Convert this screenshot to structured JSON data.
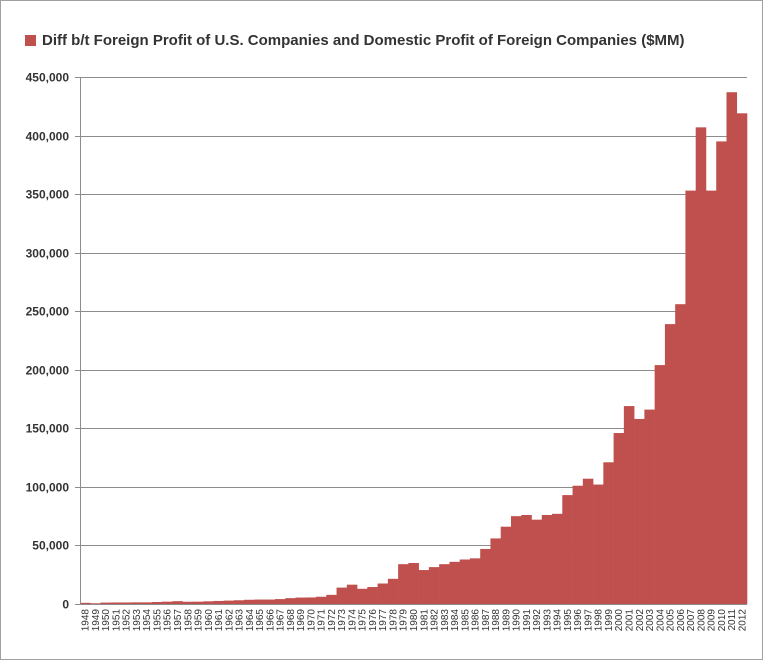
{
  "chart_data": {
    "type": "bar",
    "legend": {
      "label": "Diff b/t Foreign Profit of U.S. Companies and Domestic Profit of Foreign Companies ($MM)",
      "position": "top-left"
    },
    "grid": true,
    "ylim": [
      0,
      450000
    ],
    "yticks": [
      "0",
      "50,000",
      "100,000",
      "150,000",
      "200,000",
      "250,000",
      "300,000",
      "350,000",
      "400,000",
      "450,000"
    ],
    "ytick_values": [
      0,
      50000,
      100000,
      150000,
      200000,
      250000,
      300000,
      350000,
      400000,
      450000
    ],
    "categories": [
      "1948",
      "1949",
      "1950",
      "1951",
      "1952",
      "1953",
      "1954",
      "1955",
      "1956",
      "1957",
      "1958",
      "1959",
      "1960",
      "1961",
      "1962",
      "1963",
      "1964",
      "1965",
      "1966",
      "1967",
      "1968",
      "1969",
      "1970",
      "1971",
      "1972",
      "1973",
      "1974",
      "1975",
      "1976",
      "1977",
      "1978",
      "1979",
      "1980",
      "1981",
      "1982",
      "1983",
      "1984",
      "1985",
      "1986",
      "1987",
      "1988",
      "1989",
      "1990",
      "1991",
      "1992",
      "1993",
      "1994",
      "1995",
      "1996",
      "1997",
      "1998",
      "1999",
      "2000",
      "2001",
      "2002",
      "2003",
      "2004",
      "2005",
      "2006",
      "2007",
      "2008",
      "2009",
      "2010",
      "2011",
      "2012"
    ],
    "series": [
      {
        "name": "Diff b/t Foreign Profit of U.S. Companies and Domestic Profit of Foreign Companies ($MM)",
        "color": "#c0504d",
        "values": [
          1000,
          600,
          1200,
          1300,
          1300,
          1400,
          1400,
          1700,
          2000,
          2400,
          1900,
          2000,
          2300,
          2600,
          2900,
          3200,
          3600,
          3800,
          3800,
          4200,
          5000,
          5500,
          5600,
          6200,
          7800,
          14000,
          16500,
          13000,
          14500,
          17500,
          21500,
          34000,
          35000,
          29000,
          31500,
          34000,
          36000,
          38000,
          39000,
          47000,
          56000,
          66000,
          75000,
          76000,
          72000,
          76000,
          77000,
          93000,
          101000,
          107000,
          102000,
          121000,
          146000,
          169000,
          158000,
          166000,
          204000,
          239000,
          256000,
          353000,
          407000,
          353000,
          395000,
          437000,
          419000
        ]
      }
    ]
  }
}
